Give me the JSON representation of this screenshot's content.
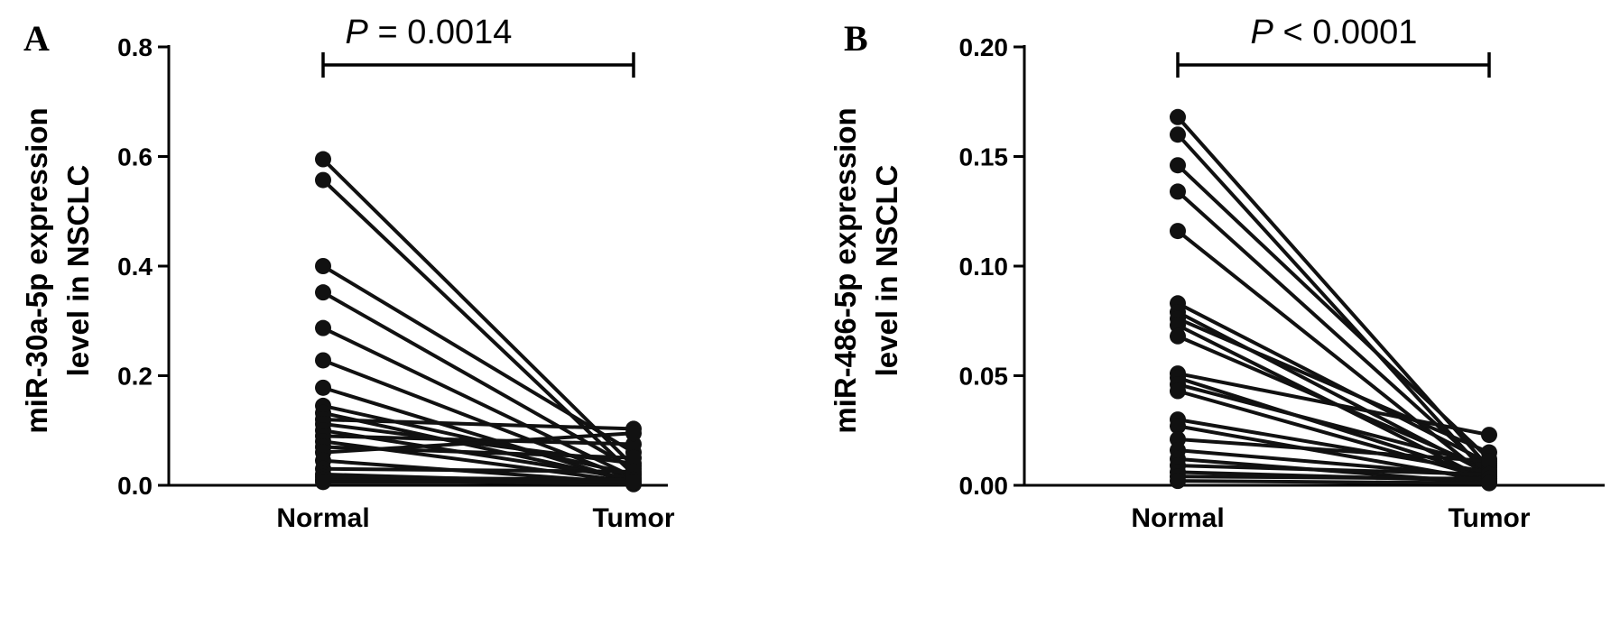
{
  "chart_data": [
    {
      "type": "line",
      "panel_label": "A",
      "ylabel_line1": "miR-30a-5p expression",
      "ylabel_line2": "level in NSCLC",
      "categories": [
        "Normal",
        "Tumor"
      ],
      "ylim": [
        0,
        0.8
      ],
      "yticks": [
        "0.0",
        "0.2",
        "0.4",
        "0.6",
        "0.8"
      ],
      "ytick_values": [
        0,
        0.2,
        0.4,
        0.6,
        0.8
      ],
      "p_symbol": "P",
      "p_text": " = 0.0014",
      "grid": false,
      "marker_color": "#111111",
      "pairs": [
        {
          "normal": 0.595,
          "tumor": 0.035
        },
        {
          "normal": 0.557,
          "tumor": 0.02
        },
        {
          "normal": 0.4,
          "tumor": 0.06
        },
        {
          "normal": 0.352,
          "tumor": 0.03
        },
        {
          "normal": 0.287,
          "tumor": 0.015
        },
        {
          "normal": 0.228,
          "tumor": 0.01
        },
        {
          "normal": 0.178,
          "tumor": 0.005
        },
        {
          "normal": 0.145,
          "tumor": 0.02
        },
        {
          "normal": 0.132,
          "tumor": 0.008
        },
        {
          "normal": 0.12,
          "tumor": 0.103
        },
        {
          "normal": 0.112,
          "tumor": 0.04
        },
        {
          "normal": 0.1,
          "tumor": 0.012
        },
        {
          "normal": 0.09,
          "tumor": 0.075
        },
        {
          "normal": 0.08,
          "tumor": 0.006
        },
        {
          "normal": 0.07,
          "tumor": 0.05
        },
        {
          "normal": 0.06,
          "tumor": 0.095
        },
        {
          "normal": 0.045,
          "tumor": 0.004
        },
        {
          "normal": 0.03,
          "tumor": 0.025
        },
        {
          "normal": 0.02,
          "tumor": 0.003
        },
        {
          "normal": 0.015,
          "tumor": 0.01
        },
        {
          "normal": 0.01,
          "tumor": 0.002
        },
        {
          "normal": 0.006,
          "tumor": 0.006
        }
      ]
    },
    {
      "type": "line",
      "panel_label": "B",
      "ylabel_line1": "miR-486-5p expression",
      "ylabel_line2": "level in NSCLC",
      "categories": [
        "Normal",
        "Tumor"
      ],
      "ylim": [
        0,
        0.2
      ],
      "yticks": [
        "0.00",
        "0.05",
        "0.10",
        "0.15",
        "0.20"
      ],
      "ytick_values": [
        0,
        0.05,
        0.1,
        0.15,
        0.2
      ],
      "p_symbol": "P",
      "p_text": " < 0.0001",
      "grid": false,
      "marker_color": "#111111",
      "pairs": [
        {
          "normal": 0.168,
          "tumor": 0.008
        },
        {
          "normal": 0.16,
          "tumor": 0.004
        },
        {
          "normal": 0.146,
          "tumor": 0.012
        },
        {
          "normal": 0.134,
          "tumor": 0.006
        },
        {
          "normal": 0.116,
          "tumor": 0.003
        },
        {
          "normal": 0.083,
          "tumor": 0.01
        },
        {
          "normal": 0.079,
          "tumor": 0.005
        },
        {
          "normal": 0.076,
          "tumor": 0.015
        },
        {
          "normal": 0.073,
          "tumor": 0.002
        },
        {
          "normal": 0.068,
          "tumor": 0.007
        },
        {
          "normal": 0.051,
          "tumor": 0.023
        },
        {
          "normal": 0.049,
          "tumor": 0.004
        },
        {
          "normal": 0.046,
          "tumor": 0.009
        },
        {
          "normal": 0.043,
          "tumor": 0.003
        },
        {
          "normal": 0.03,
          "tumor": 0.006
        },
        {
          "normal": 0.027,
          "tumor": 0.002
        },
        {
          "normal": 0.021,
          "tumor": 0.011
        },
        {
          "normal": 0.016,
          "tumor": 0.004
        },
        {
          "normal": 0.012,
          "tumor": 0.001
        },
        {
          "normal": 0.009,
          "tumor": 0.005
        },
        {
          "normal": 0.006,
          "tumor": 0.002
        },
        {
          "normal": 0.004,
          "tumor": 0.003
        },
        {
          "normal": 0.002,
          "tumor": 0.001
        }
      ]
    }
  ]
}
